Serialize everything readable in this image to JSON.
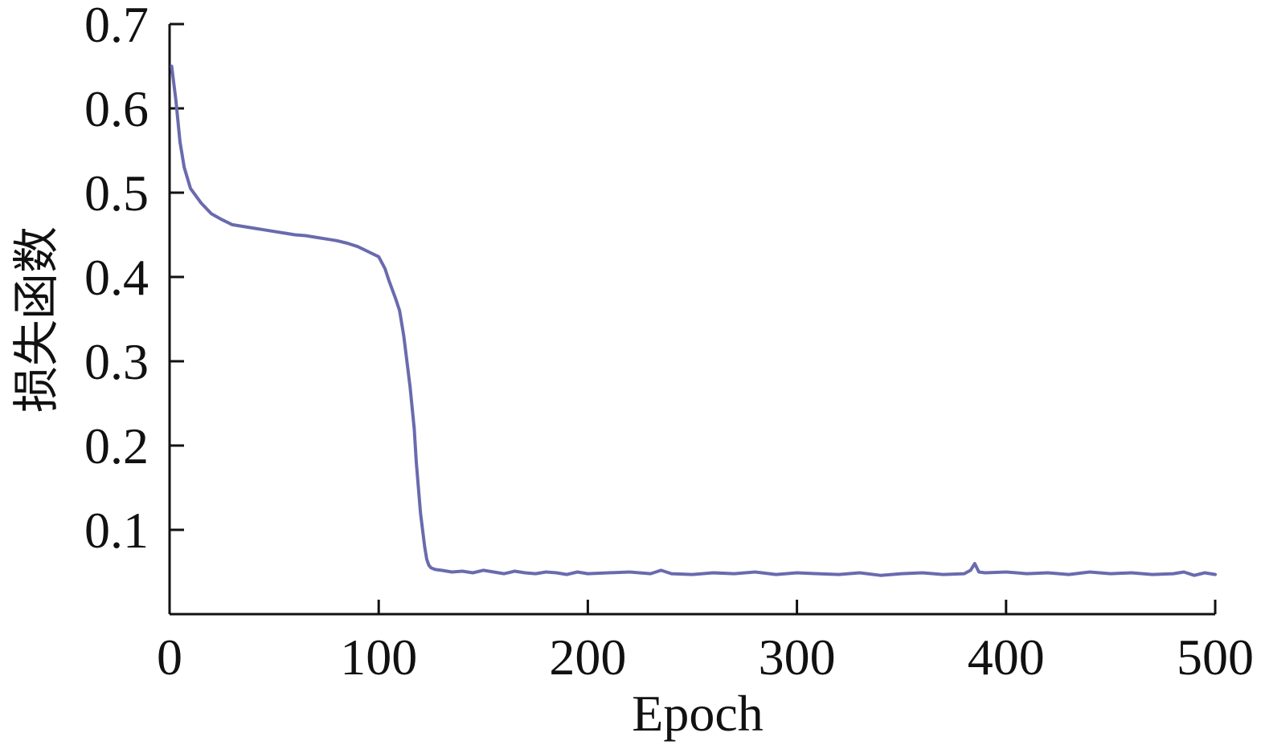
{
  "chart_data": {
    "type": "line",
    "title": "",
    "xlabel": "Epoch",
    "ylabel": "损失函数",
    "xlim": [
      0,
      500
    ],
    "ylim": [
      0,
      0.7
    ],
    "x_ticks": [
      "0",
      "100",
      "200",
      "300",
      "400",
      "500"
    ],
    "y_ticks": [
      "0.1",
      "0.2",
      "0.3",
      "0.4",
      "0.5",
      "0.6",
      "0.7"
    ],
    "grid": false,
    "line_color": "#6a6aaf",
    "series": [
      {
        "x": [
          1,
          3,
          5,
          7,
          10,
          15,
          20,
          25,
          30,
          35,
          40,
          45,
          50,
          55,
          60,
          65,
          70,
          75,
          80,
          85,
          90,
          95,
          100,
          103,
          105,
          108,
          110,
          112,
          113,
          115,
          117,
          118,
          119,
          120,
          121,
          122,
          123,
          124,
          125,
          127,
          130,
          135,
          140,
          145,
          150,
          155,
          160,
          165,
          170,
          175,
          180,
          185,
          190,
          195,
          200,
          210,
          220,
          230,
          235,
          240,
          250,
          260,
          270,
          280,
          290,
          300,
          310,
          320,
          330,
          340,
          350,
          360,
          370,
          380,
          383,
          385,
          387,
          390,
          400,
          410,
          420,
          430,
          440,
          450,
          460,
          470,
          480,
          485,
          490,
          495,
          500
        ],
        "y": [
          0.65,
          0.61,
          0.56,
          0.53,
          0.505,
          0.488,
          0.475,
          0.468,
          0.462,
          0.46,
          0.458,
          0.456,
          0.454,
          0.452,
          0.45,
          0.449,
          0.447,
          0.445,
          0.443,
          0.44,
          0.436,
          0.43,
          0.424,
          0.41,
          0.395,
          0.375,
          0.36,
          0.33,
          0.31,
          0.27,
          0.22,
          0.18,
          0.15,
          0.12,
          0.1,
          0.08,
          0.065,
          0.058,
          0.055,
          0.053,
          0.052,
          0.05,
          0.051,
          0.049,
          0.052,
          0.05,
          0.048,
          0.051,
          0.049,
          0.048,
          0.05,
          0.049,
          0.047,
          0.05,
          0.048,
          0.049,
          0.05,
          0.048,
          0.052,
          0.048,
          0.047,
          0.049,
          0.048,
          0.05,
          0.047,
          0.049,
          0.048,
          0.047,
          0.049,
          0.046,
          0.048,
          0.049,
          0.047,
          0.048,
          0.052,
          0.06,
          0.05,
          0.049,
          0.05,
          0.048,
          0.049,
          0.047,
          0.05,
          0.048,
          0.049,
          0.047,
          0.048,
          0.05,
          0.046,
          0.049,
          0.047
        ]
      }
    ]
  }
}
